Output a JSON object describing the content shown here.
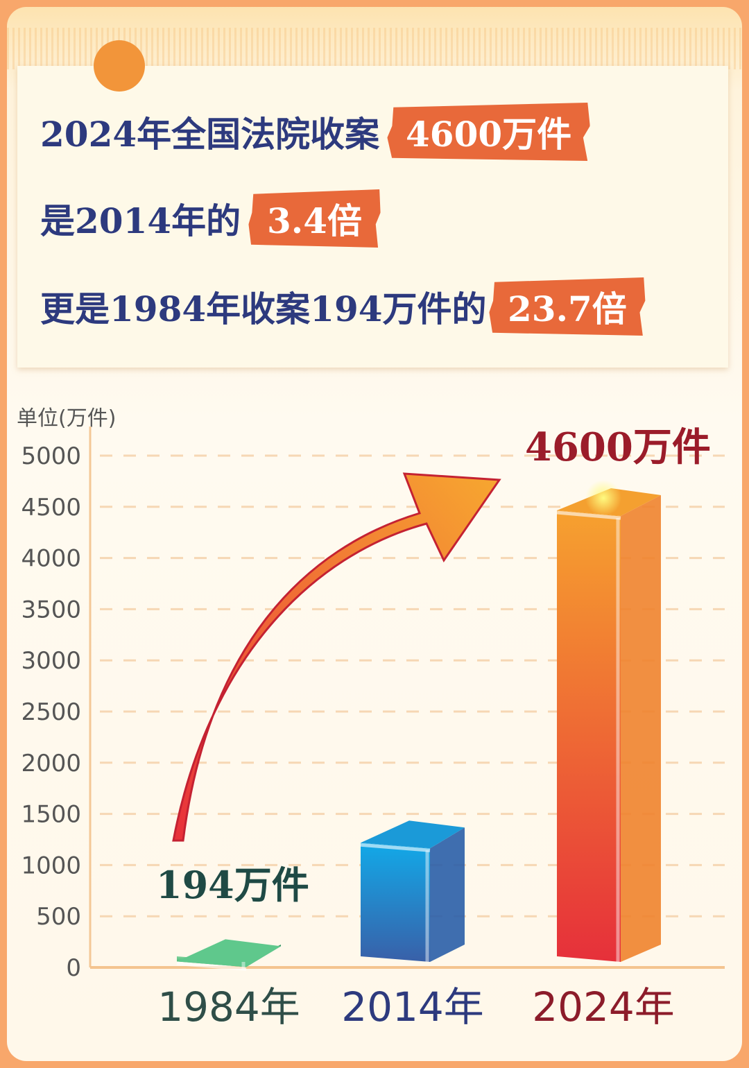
{
  "headline": {
    "line1": {
      "text": "2024年全国法院收案",
      "highlight": "4600万件"
    },
    "line2": {
      "text": "是2014年的",
      "highlight": "3.4倍"
    },
    "line3": {
      "text": "更是1984年收案194万件的",
      "highlight": "23.7倍"
    }
  },
  "colors": {
    "headline": "#2d3a7e",
    "highlight": "#e8693a",
    "bar_1984": "#2fae6e",
    "bar_2014": "#1e8ed6",
    "bar_2024": "#ee4a30",
    "arrow": "#f08a30"
  },
  "chart_data": {
    "type": "bar",
    "unit_label": "单位(万件)",
    "categories": [
      "1984年",
      "2014年",
      "2024年"
    ],
    "values": [
      194,
      1353,
      4600
    ],
    "data_labels": [
      "194万件",
      "",
      "4600万件"
    ],
    "ylim": [
      0,
      5000
    ],
    "yticks": [
      "0",
      "500",
      "1000",
      "1500",
      "2000",
      "2500",
      "3000",
      "3500",
      "4000",
      "4500",
      "5000"
    ],
    "grid": true,
    "style": "3d-column with upward arrow"
  }
}
